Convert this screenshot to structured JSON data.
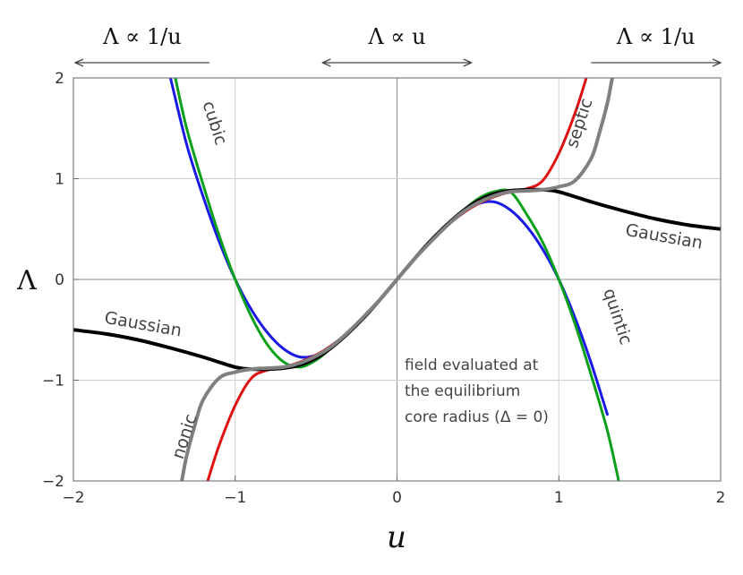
{
  "chart_data": {
    "type": "line",
    "xlabel": "u",
    "ylabel": "Λ",
    "xlim": [
      -2,
      2
    ],
    "ylim": [
      -2,
      2
    ],
    "x_ticks": [
      -2,
      -1,
      0,
      1,
      2
    ],
    "y_ticks": [
      -2,
      -1,
      0,
      1,
      2
    ],
    "x_tick_labels": [
      "−2",
      "−1",
      "0",
      "1",
      "2"
    ],
    "y_tick_labels": [
      "−2",
      "−1",
      "0",
      "1",
      "2"
    ],
    "grid": true,
    "regimes": [
      {
        "label": "Λ ∝ 1/u",
        "direction": "left",
        "from_u": -1.16
      },
      {
        "label": "Λ ∝ u",
        "direction": "both",
        "from_u": -0.46,
        "to_u": 0.46
      },
      {
        "label": "Λ ∝ 1/u",
        "direction": "right",
        "from_u": 1.2
      }
    ],
    "annotation": [
      "field evaluated at",
      "the equilibrium",
      "core radius (Δ = 0)"
    ],
    "series": [
      {
        "name": "Gaussian",
        "color": "#000000",
        "stroke": 4,
        "x": [
          -2.0,
          -1.8,
          -1.6,
          -1.4,
          -1.2,
          -1.0,
          -0.9,
          -0.8,
          -0.7,
          -0.6,
          -0.5,
          -0.4,
          -0.3,
          -0.2,
          -0.1,
          0.0,
          0.1,
          0.2,
          0.3,
          0.4,
          0.5,
          0.6,
          0.7,
          0.8,
          0.9,
          1.0,
          1.2,
          1.4,
          1.6,
          1.8,
          2.0
        ],
        "values": [
          -0.5,
          -0.54,
          -0.6,
          -0.68,
          -0.77,
          -0.87,
          -0.89,
          -0.89,
          -0.88,
          -0.85,
          -0.78,
          -0.67,
          -0.53,
          -0.37,
          -0.19,
          0.0,
          0.19,
          0.37,
          0.53,
          0.67,
          0.78,
          0.85,
          0.88,
          0.89,
          0.89,
          0.87,
          0.77,
          0.68,
          0.6,
          0.54,
          0.5
        ]
      },
      {
        "name": "cubic",
        "color": "#1a1ae6",
        "stroke": 3,
        "x": [
          -1.4,
          -1.3,
          -1.2,
          -1.1,
          -1.0,
          -0.9,
          -0.8,
          -0.7,
          -0.6,
          -0.5,
          -0.4,
          -0.3,
          -0.2,
          -0.1,
          0.0,
          0.1,
          0.2,
          0.3,
          0.4,
          0.5,
          0.6,
          0.7,
          0.8,
          0.9,
          1.0,
          1.1,
          1.2,
          1.3
        ],
        "values": [
          2.0,
          1.34,
          0.83,
          0.38,
          0.0,
          -0.3,
          -0.53,
          -0.69,
          -0.77,
          -0.75,
          -0.65,
          -0.52,
          -0.36,
          -0.19,
          0.0,
          0.19,
          0.36,
          0.52,
          0.65,
          0.75,
          0.77,
          0.69,
          0.53,
          0.3,
          0.0,
          -0.38,
          -0.83,
          -1.34
        ]
      },
      {
        "name": "quintic",
        "color": "#0aa01a",
        "stroke": 3,
        "x": [
          -1.37,
          -1.3,
          -1.2,
          -1.1,
          -1.0,
          -0.9,
          -0.8,
          -0.7,
          -0.6,
          -0.5,
          -0.4,
          -0.3,
          -0.2,
          -0.1,
          0.0,
          0.1,
          0.2,
          0.3,
          0.4,
          0.5,
          0.6,
          0.7,
          0.8,
          0.9,
          1.0,
          1.1,
          1.2,
          1.3,
          1.37
        ],
        "values": [
          2.0,
          1.5,
          0.95,
          0.44,
          0.0,
          -0.37,
          -0.65,
          -0.82,
          -0.87,
          -0.8,
          -0.67,
          -0.52,
          -0.36,
          -0.19,
          0.0,
          0.19,
          0.36,
          0.52,
          0.67,
          0.8,
          0.87,
          0.87,
          0.65,
          0.37,
          0.0,
          -0.44,
          -0.95,
          -1.5,
          -2.0
        ]
      },
      {
        "name": "septic",
        "color": "#e01010",
        "stroke": 3,
        "x": [
          -1.17,
          -1.1,
          -1.0,
          -0.9,
          -0.8,
          -0.7,
          -0.6,
          -0.5,
          -0.4,
          -0.3,
          -0.2,
          -0.1,
          0.0,
          0.1,
          0.2,
          0.3,
          0.4,
          0.5,
          0.6,
          0.7,
          0.8,
          0.9,
          1.0,
          1.1,
          1.17
        ],
        "values": [
          -2.0,
          -1.65,
          -1.25,
          -0.98,
          -0.9,
          -0.87,
          -0.82,
          -0.75,
          -0.65,
          -0.52,
          -0.36,
          -0.19,
          0.0,
          0.19,
          0.36,
          0.52,
          0.65,
          0.75,
          0.82,
          0.87,
          0.9,
          0.98,
          1.25,
          1.65,
          2.0
        ]
      },
      {
        "name": "nonic",
        "color": "#808080",
        "stroke": 4,
        "x": [
          -1.33,
          -1.3,
          -1.25,
          -1.2,
          -1.1,
          -1.0,
          -0.9,
          -0.8,
          -0.7,
          -0.6,
          -0.5,
          -0.4,
          -0.3,
          -0.2,
          -0.1,
          0.0,
          0.1,
          0.2,
          0.3,
          0.4,
          0.5,
          0.6,
          0.7,
          0.8,
          0.9,
          1.0,
          1.1,
          1.2,
          1.25,
          1.3,
          1.33
        ],
        "values": [
          -2.0,
          -1.75,
          -1.45,
          -1.2,
          -0.98,
          -0.92,
          -0.89,
          -0.88,
          -0.87,
          -0.83,
          -0.76,
          -0.66,
          -0.52,
          -0.36,
          -0.19,
          0.0,
          0.19,
          0.36,
          0.52,
          0.66,
          0.76,
          0.83,
          0.87,
          0.88,
          0.89,
          0.92,
          0.98,
          1.2,
          1.45,
          1.75,
          2.0
        ]
      }
    ],
    "curve_labels": [
      {
        "text": "cubic",
        "u": -1.13,
        "y": 1.55,
        "angle": 72
      },
      {
        "text": "septic",
        "u": 1.13,
        "y": 1.55,
        "angle": -72
      },
      {
        "text": "Gaussian",
        "u": 1.65,
        "y": 0.42,
        "angle": 10
      },
      {
        "text": "Gaussian",
        "u": -1.57,
        "y": -0.45,
        "angle": 10
      },
      {
        "text": "quintic",
        "u": 1.36,
        "y": -0.37,
        "angle": 72
      },
      {
        "text": "nonic",
        "u": -1.31,
        "y": -1.56,
        "angle": -72
      }
    ]
  }
}
